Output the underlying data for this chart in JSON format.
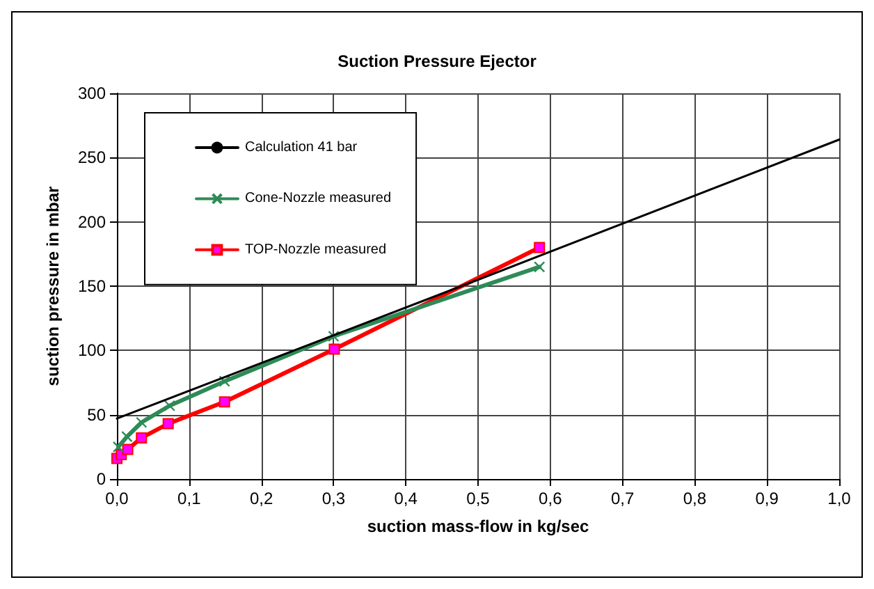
{
  "chart_data": {
    "type": "line",
    "title": "Suction Pressure Ejector",
    "xlabel": "suction mass-flow in kg/sec",
    "ylabel": "suction pressure in mbar",
    "series": [
      {
        "name": "Calculation 41 bar",
        "color": "#000000",
        "marker": "none",
        "x": [
          0,
          0.5,
          1.0
        ],
        "values": [
          47,
          155,
          264
        ]
      },
      {
        "name": "Cone-Nozzle measured",
        "color": "#2e8b57",
        "marker": "cross",
        "x": [
          0.002,
          0.014,
          0.034,
          0.073,
          0.149,
          0.3,
          0.585
        ],
        "values": [
          25,
          33,
          44,
          57,
          76,
          111,
          165
        ]
      },
      {
        "name": "TOP-Nozzle measured",
        "color": "#ff0000",
        "marker": "square",
        "x": [
          0,
          0.006,
          0.015,
          0.034,
          0.071,
          0.149,
          0.301,
          0.585
        ],
        "values": [
          16,
          19,
          23,
          32,
          43,
          60,
          101,
          180
        ]
      }
    ],
    "xlim": [
      0,
      1.0
    ],
    "xticks": [
      {
        "value": 0,
        "label": "0,0"
      },
      {
        "value": 0.1,
        "label": "0,1"
      },
      {
        "value": 0.2,
        "label": "0,2"
      },
      {
        "value": 0.3,
        "label": "0,3"
      },
      {
        "value": 0.4,
        "label": "0,4"
      },
      {
        "value": 0.5,
        "label": "0,5"
      },
      {
        "value": 0.6,
        "label": "0,6"
      },
      {
        "value": 0.7,
        "label": "0,7"
      },
      {
        "value": 0.8,
        "label": "0,8"
      },
      {
        "value": 0.9,
        "label": "0,9"
      },
      {
        "value": 1.0,
        "label": "1,0"
      }
    ],
    "ylim": [
      0,
      300
    ],
    "yticks": [
      0,
      50,
      100,
      150,
      200,
      250,
      300
    ],
    "grid": true,
    "legend": "top left"
  }
}
